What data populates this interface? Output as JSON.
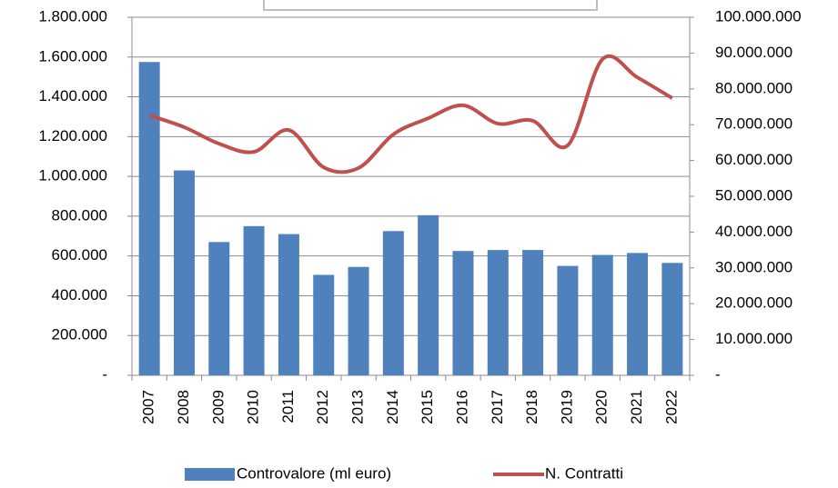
{
  "chart_data": {
    "type": "bar_line",
    "categories": [
      "2007",
      "2008",
      "2009",
      "2010",
      "2011",
      "2012",
      "2013",
      "2014",
      "2015",
      "2016",
      "2017",
      "2018",
      "2019",
      "2020",
      "2021",
      "2022"
    ],
    "series": [
      {
        "name": "Controvalore (ml euro)",
        "color": "#4f81bd",
        "type": "bar",
        "axis": "y",
        "values": [
          1575000,
          1030000,
          670000,
          750000,
          710000,
          505000,
          545000,
          725000,
          805000,
          625000,
          630000,
          630000,
          550000,
          605000,
          615000,
          565000
        ]
      },
      {
        "name": "N. Contratti",
        "color": "#c0504d",
        "type": "line",
        "axis": "y2",
        "values": [
          72600000,
          69300000,
          64700000,
          62400000,
          68500000,
          58100000,
          57900000,
          67300000,
          71800000,
          75400000,
          70300000,
          71100000,
          64200000,
          88300000,
          83200000,
          77400000
        ]
      }
    ],
    "ylim": [
      0,
      1800000
    ],
    "yticks": [
      {
        "value": 0,
        "label": "-"
      },
      {
        "value": 200000,
        "label": "200.000"
      },
      {
        "value": 400000,
        "label": "400.000"
      },
      {
        "value": 600000,
        "label": "600.000"
      },
      {
        "value": 800000,
        "label": "800.000"
      },
      {
        "value": 1000000,
        "label": "1.000.000"
      },
      {
        "value": 1200000,
        "label": "1.200.000"
      },
      {
        "value": 1400000,
        "label": "1.400.000"
      },
      {
        "value": 1600000,
        "label": "1.600.000"
      },
      {
        "value": 1800000,
        "label": "1.800.000"
      }
    ],
    "y2lim": [
      0,
      100000000
    ],
    "y2ticks": [
      {
        "value": 0,
        "label": "-"
      },
      {
        "value": 10000000,
        "label": "10.000.000"
      },
      {
        "value": 20000000,
        "label": "20.000.000"
      },
      {
        "value": 30000000,
        "label": "30.000.000"
      },
      {
        "value": 40000000,
        "label": "40.000.000"
      },
      {
        "value": 50000000,
        "label": "50.000.000"
      },
      {
        "value": 60000000,
        "label": "60.000.000"
      },
      {
        "value": 70000000,
        "label": "70.000.000"
      },
      {
        "value": 80000000,
        "label": "80.000.000"
      },
      {
        "value": 90000000,
        "label": "90.000.000"
      },
      {
        "value": 100000000,
        "label": "100.000.000"
      }
    ],
    "grid": true,
    "legend": "bottom"
  }
}
